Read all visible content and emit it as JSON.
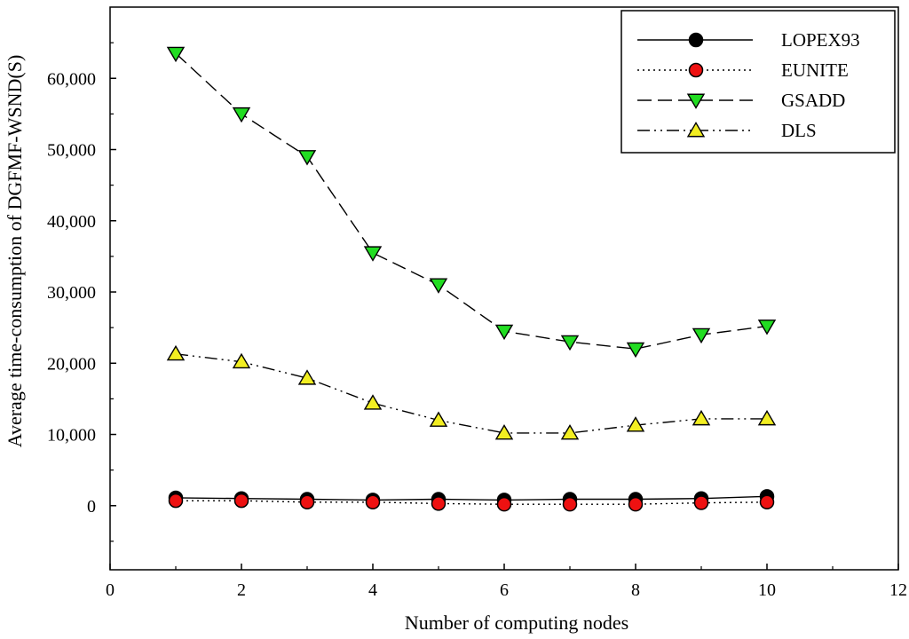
{
  "chart_data": {
    "type": "line",
    "title": "",
    "xlabel": "Number of computing nodes",
    "ylabel": "Average time-consumption of DGFMF-WSND(S)",
    "xlim": [
      0,
      12
    ],
    "ylim": [
      -9000,
      70000
    ],
    "x_ticks": [
      0,
      2,
      4,
      6,
      8,
      10,
      12
    ],
    "x_tick_labels": [
      "0",
      "2",
      "4",
      "6",
      "8",
      "10",
      "12"
    ],
    "y_ticks": [
      0,
      10000,
      20000,
      30000,
      40000,
      50000,
      60000
    ],
    "y_tick_labels": [
      "0",
      "10,000",
      "20,000",
      "30,000",
      "40,000",
      "50,000",
      "60,000"
    ],
    "grid": false,
    "legend_position": "top-right",
    "x": [
      1,
      2,
      3,
      4,
      5,
      6,
      7,
      8,
      9,
      10
    ],
    "series": [
      {
        "name": "LOPEX93",
        "color": "#000000",
        "marker": "circle",
        "dash": "solid",
        "values": [
          1100,
          1000,
          900,
          800,
          900,
          800,
          900,
          900,
          1000,
          1300
        ]
      },
      {
        "name": "EUNITE",
        "color": "#ee1111",
        "marker": "circle",
        "dash": "dotted",
        "values": [
          700,
          700,
          500,
          500,
          300,
          200,
          200,
          200,
          400,
          500
        ]
      },
      {
        "name": "GSADD",
        "color": "#22dd22",
        "marker": "triangle-down",
        "dash": "dashed",
        "values": [
          63500,
          55000,
          49000,
          35500,
          31000,
          24500,
          23000,
          22000,
          24000,
          25200
        ]
      },
      {
        "name": "DLS",
        "color": "#f2ee22",
        "marker": "triangle-up",
        "dash": "dashdotdot",
        "values": [
          21300,
          20200,
          17900,
          14400,
          12000,
          10200,
          10200,
          11300,
          12200,
          12200
        ]
      }
    ]
  }
}
